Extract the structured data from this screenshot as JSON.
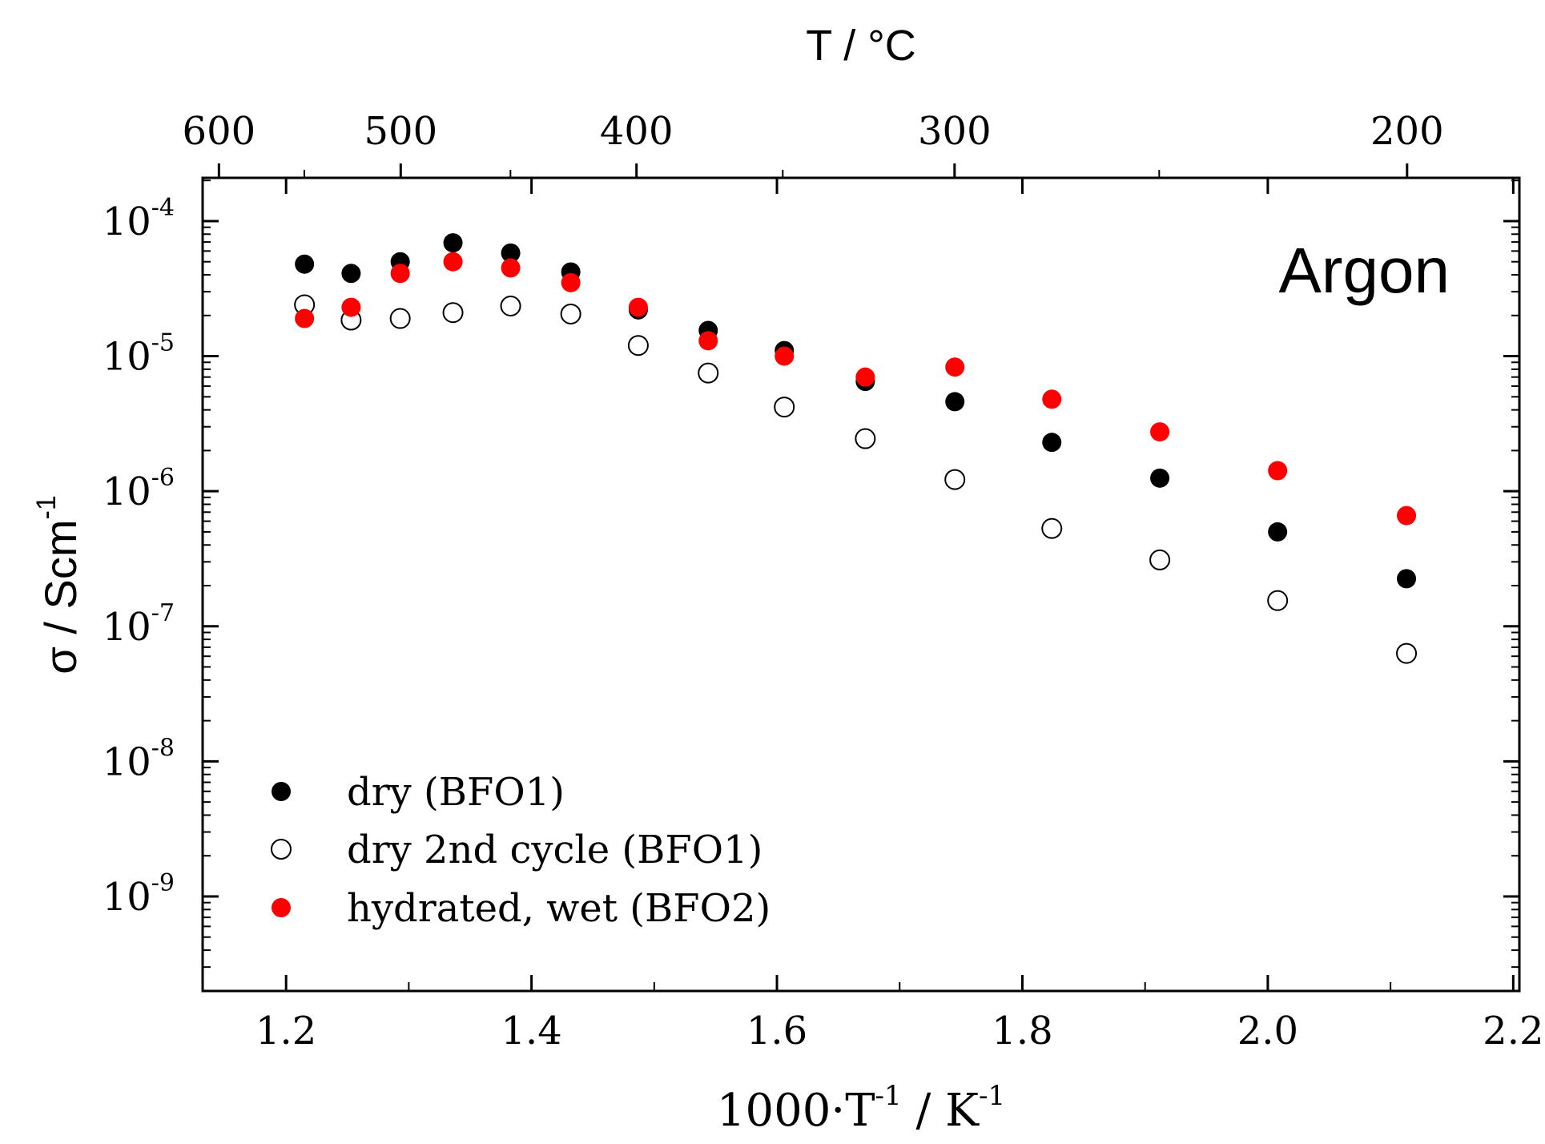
{
  "chart_data": {
    "type": "scatter",
    "annotation": "Argon",
    "xlabel": {
      "base": "1000·T",
      "exp1": "-1",
      "mid": " / K",
      "exp2": "-1"
    },
    "ylabel": {
      "base": "σ / Scm",
      "exp": "-1"
    },
    "top_axis": {
      "label": "T / °C",
      "ticks": [
        "600",
        "500",
        "400",
        "300",
        "200"
      ],
      "tick_values_c": [
        600,
        500,
        400,
        300,
        200
      ]
    },
    "x_ticks": [
      "1.2",
      "1.4",
      "1.6",
      "1.8",
      "2.0",
      "2.2"
    ],
    "x_tick_values": [
      1.2,
      1.4,
      1.6,
      1.8,
      2.0,
      2.2
    ],
    "y_ticks": [
      {
        "base": "10",
        "exp": "-4"
      },
      {
        "base": "10",
        "exp": "-5"
      },
      {
        "base": "10",
        "exp": "-6"
      },
      {
        "base": "10",
        "exp": "-7"
      },
      {
        "base": "10",
        "exp": "-8"
      },
      {
        "base": "10",
        "exp": "-9"
      }
    ],
    "y_tick_values": [
      0.0001,
      1e-05,
      1e-06,
      1e-07,
      1e-08,
      1e-09
    ],
    "xlim": [
      1.132,
      2.205
    ],
    "ylim_log10": [
      -9.7,
      -3.68
    ],
    "legend_position": "bottom-left",
    "series": [
      {
        "name": "dry (BFO1)",
        "marker": "filled",
        "color": "#000000",
        "x": [
          1.215,
          1.253,
          1.293,
          1.336,
          1.383,
          1.432,
          1.487,
          1.544,
          1.606,
          1.672,
          1.745,
          1.824,
          1.912,
          2.008,
          2.113
        ],
        "y": [
          4.8e-05,
          4.1e-05,
          5e-05,
          6.9e-05,
          5.8e-05,
          4.2e-05,
          2.2e-05,
          1.55e-05,
          1.1e-05,
          6.5e-06,
          4.6e-06,
          2.3e-06,
          1.25e-06,
          5e-07,
          2.25e-07
        ]
      },
      {
        "name": "dry 2nd cycle (BFO1)",
        "marker": "open",
        "color": "#000000",
        "x": [
          1.215,
          1.253,
          1.293,
          1.336,
          1.383,
          1.432,
          1.487,
          1.544,
          1.606,
          1.672,
          1.745,
          1.824,
          1.912,
          2.008,
          2.113
        ],
        "y": [
          2.4e-05,
          1.85e-05,
          1.9e-05,
          2.1e-05,
          2.35e-05,
          2.05e-05,
          1.2e-05,
          7.5e-06,
          4.2e-06,
          2.45e-06,
          1.22e-06,
          5.3e-07,
          3.1e-07,
          1.55e-07,
          6.3e-08
        ]
      },
      {
        "name": "hydrated, wet (BFO2)",
        "marker": "filled",
        "color": "#ff0000",
        "x": [
          1.215,
          1.253,
          1.293,
          1.336,
          1.383,
          1.432,
          1.487,
          1.544,
          1.606,
          1.672,
          1.745,
          1.824,
          1.912,
          2.008,
          2.113
        ],
        "y": [
          1.9e-05,
          2.3e-05,
          4.1e-05,
          5e-05,
          4.5e-05,
          3.5e-05,
          2.3e-05,
          1.3e-05,
          1e-05,
          7e-06,
          8.3e-06,
          4.8e-06,
          2.75e-06,
          1.42e-06,
          6.6e-07
        ]
      }
    ]
  }
}
